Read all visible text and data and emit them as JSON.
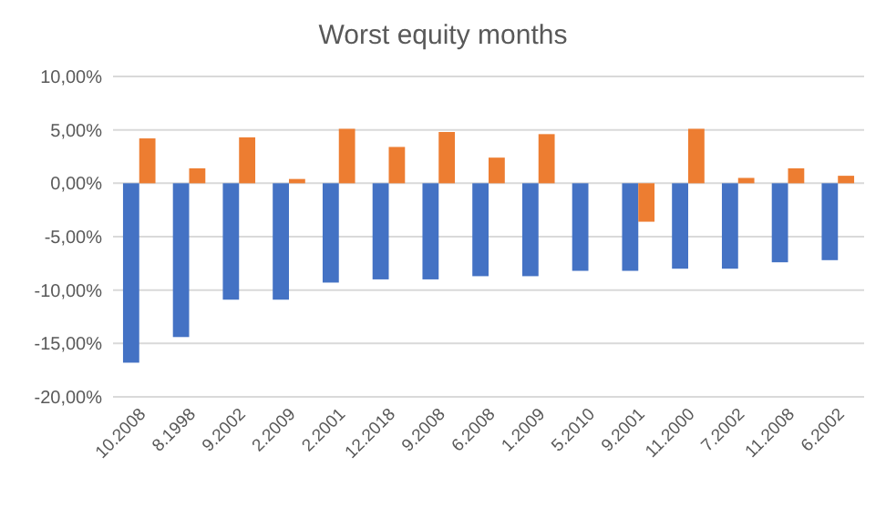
{
  "chart_data": {
    "type": "bar",
    "title": "Worst equity months",
    "categories": [
      "10.2008",
      "8.1998",
      "9.2002",
      "2.2009",
      "2.2001",
      "12.2018",
      "9.2008",
      "6.2008",
      "1.2009",
      "5.2010",
      "9.2001",
      "11.2000",
      "7.2002",
      "11.2008",
      "6.2002"
    ],
    "series": [
      {
        "color": "#4472c4",
        "values": [
          -16.8,
          -14.4,
          -10.9,
          -10.9,
          -9.3,
          -9.0,
          -9.0,
          -8.7,
          -8.7,
          -8.2,
          -8.2,
          -8.0,
          -8.0,
          -7.4,
          -7.2
        ]
      },
      {
        "color": "#ed7d31",
        "values": [
          4.2,
          1.4,
          4.3,
          0.4,
          5.1,
          3.4,
          4.8,
          2.4,
          4.6,
          null,
          -3.6,
          5.1,
          0.5,
          1.4,
          0.7
        ]
      }
    ],
    "ylim": [
      -20,
      10
    ],
    "yticks": [
      {
        "value": -20,
        "label": "-20,00%"
      },
      {
        "value": -15,
        "label": "-15,00%"
      },
      {
        "value": -10,
        "label": "-10,00%"
      },
      {
        "value": -5,
        "label": "-5,00%"
      },
      {
        "value": 0,
        "label": "0,00%"
      },
      {
        "value": 5,
        "label": "5,00%"
      },
      {
        "value": 10,
        "label": "10,00%"
      }
    ],
    "grid": "y"
  }
}
